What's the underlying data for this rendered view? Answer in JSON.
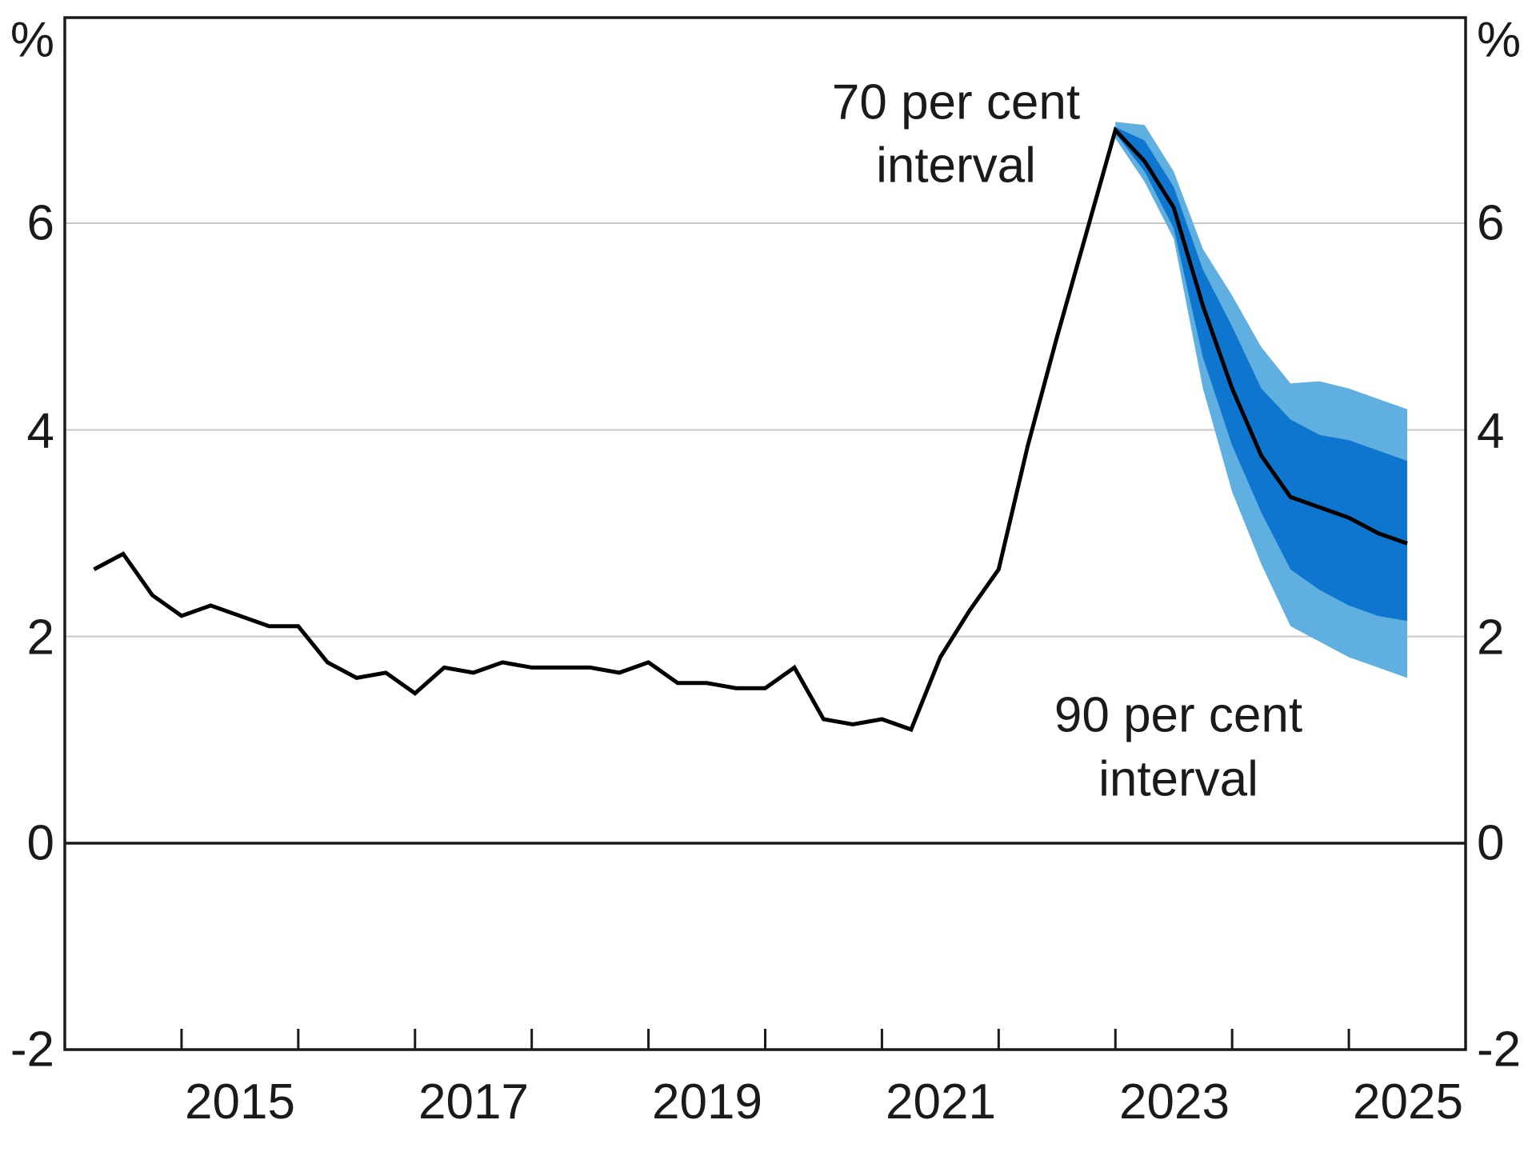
{
  "axes": {
    "left": [
      "%",
      "6",
      "4",
      "2",
      "0",
      "-2"
    ],
    "right": [
      "%",
      "6",
      "4",
      "2",
      "0",
      "-2"
    ],
    "x": [
      "2015",
      "2017",
      "2019",
      "2021",
      "2023",
      "2025"
    ]
  },
  "annotations": {
    "interval70": {
      "line1": "70 per cent",
      "line2": "interval"
    },
    "interval90": {
      "line1": "90 per cent",
      "line2": "interval"
    }
  },
  "colors": {
    "band70": "#0e76cf",
    "band90": "#5fb0e1",
    "label70": "#1473cd",
    "label90": "#55abde",
    "line": "#000000",
    "gridline": "#c8c8c8",
    "axis": "#1a1a1a"
  },
  "chart_data": {
    "type": "line",
    "title": "",
    "ylabel": "%",
    "ylim": [
      -2,
      8
    ],
    "xlim_years": [
      2014,
      2026
    ],
    "ytick_values": [
      6,
      4,
      2,
      0,
      -2
    ],
    "gridline_values": [
      6,
      4,
      2
    ],
    "zero_line_value": 0,
    "xtick_label_years": [
      2015,
      2017,
      2019,
      2021,
      2023,
      2025
    ],
    "xtick_mark_years": [
      2015,
      2016,
      2017,
      2018,
      2019,
      2020,
      2021,
      2022,
      2023,
      2024,
      2025
    ],
    "legend_position": "annotations-inside-plot",
    "grid": true,
    "series": [
      {
        "name": "history",
        "x": [
          2014.25,
          2014.5,
          2014.75,
          2015.0,
          2015.25,
          2015.5,
          2015.75,
          2016.0,
          2016.25,
          2016.5,
          2016.75,
          2017.0,
          2017.25,
          2017.5,
          2017.75,
          2018.0,
          2018.25,
          2018.5,
          2018.75,
          2019.0,
          2019.25,
          2019.5,
          2019.75,
          2020.0,
          2020.25,
          2020.5,
          2020.75,
          2021.0,
          2021.25,
          2021.5,
          2021.75,
          2022.0,
          2022.25,
          2022.5,
          2022.75,
          2023.0
        ],
        "y": [
          2.65,
          2.8,
          2.4,
          2.2,
          2.3,
          2.2,
          2.1,
          2.1,
          1.75,
          1.6,
          1.65,
          1.45,
          1.7,
          1.65,
          1.75,
          1.7,
          1.7,
          1.7,
          1.65,
          1.75,
          1.55,
          1.55,
          1.5,
          1.5,
          1.7,
          1.2,
          1.15,
          1.2,
          1.1,
          1.8,
          2.25,
          2.65,
          3.85,
          4.9,
          5.9,
          6.9
        ]
      },
      {
        "name": "central forecast",
        "x": [
          2023.0,
          2023.25,
          2023.5,
          2023.75,
          2024.0,
          2024.25,
          2024.5,
          2024.75,
          2025.0,
          2025.25,
          2025.5
        ],
        "y": [
          6.9,
          6.6,
          6.15,
          5.2,
          4.4,
          3.75,
          3.35,
          3.25,
          3.15,
          3.0,
          2.9
        ]
      },
      {
        "name": "70 per cent interval",
        "x": [
          2023.0,
          2023.25,
          2023.5,
          2023.75,
          2024.0,
          2024.25,
          2024.5,
          2024.75,
          2025.0,
          2025.25,
          2025.5
        ],
        "upper": [
          6.93,
          6.8,
          6.35,
          5.55,
          5.0,
          4.4,
          4.1,
          3.95,
          3.9,
          3.8,
          3.7
        ],
        "lower": [
          6.87,
          6.5,
          5.95,
          4.7,
          3.85,
          3.2,
          2.65,
          2.45,
          2.3,
          2.2,
          2.15
        ]
      },
      {
        "name": "90 per cent interval",
        "x": [
          2023.0,
          2023.25,
          2023.5,
          2023.75,
          2024.0,
          2024.25,
          2024.5,
          2024.75,
          2025.0,
          2025.25,
          2025.5
        ],
        "upper": [
          6.98,
          6.95,
          6.5,
          5.75,
          5.3,
          4.8,
          4.45,
          4.47,
          4.4,
          4.3,
          4.2
        ],
        "lower": [
          6.82,
          6.4,
          5.85,
          4.4,
          3.4,
          2.7,
          2.1,
          1.95,
          1.8,
          1.7,
          1.6
        ]
      }
    ]
  }
}
